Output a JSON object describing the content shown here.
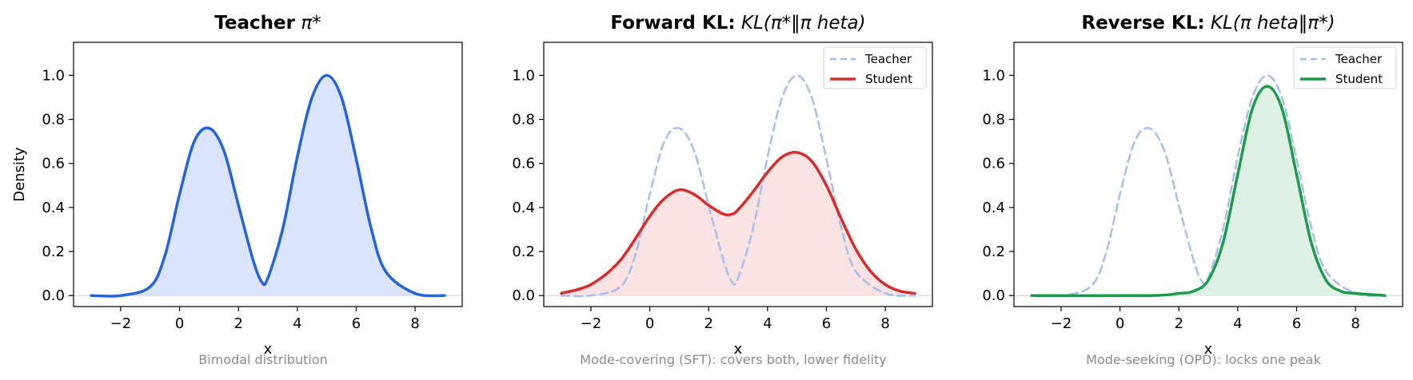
{
  "colors": {
    "teacher": "#2563d9",
    "teacher_fill": "#dbe4fb",
    "teacher_dashed": "#a5bdef",
    "student_forward": "#d62c2c",
    "student_forward_fill": "#fbe3e3",
    "student_reverse": "#1b9b4b",
    "student_reverse_fill": "#dff1e5",
    "caption": "#8c8c8c"
  },
  "chart_data": [
    {
      "type": "line",
      "title_bold": "Teacher",
      "title_math": "π*",
      "xlabel": "x",
      "ylabel": "Density",
      "caption": "Bimodal distribution",
      "xlim": [
        -3.6,
        9.6
      ],
      "ylim": [
        -0.05,
        1.15
      ],
      "xticks": [
        -2,
        0,
        2,
        4,
        6,
        8
      ],
      "xtick_labels": [
        "−2",
        "0",
        "2",
        "4",
        "6",
        "8"
      ],
      "yticks": [
        0.0,
        0.2,
        0.4,
        0.6,
        0.8,
        1.0
      ],
      "ytick_labels": [
        "0.0",
        "0.2",
        "0.4",
        "0.6",
        "0.8",
        "1.0"
      ],
      "legend": null,
      "series": [
        {
          "role": "teacher",
          "style": "solid",
          "fill": true,
          "x": [
            -3,
            -2,
            -1,
            -0.5,
            0,
            0.5,
            1,
            1.5,
            2,
            2.5,
            2.8,
            3,
            3.5,
            4,
            4.5,
            5,
            5.5,
            6,
            6.5,
            7,
            8,
            9
          ],
          "y": [
            0.0,
            0.0,
            0.04,
            0.18,
            0.46,
            0.7,
            0.76,
            0.66,
            0.41,
            0.16,
            0.06,
            0.08,
            0.3,
            0.63,
            0.9,
            1.0,
            0.9,
            0.62,
            0.31,
            0.11,
            0.01,
            0.0
          ]
        }
      ]
    },
    {
      "type": "line",
      "title_bold": "Forward KL:",
      "title_math": "KL(π*‖π heta)",
      "xlabel": "x",
      "ylabel": "",
      "caption": "Mode-covering (SFT): covers both, lower fidelity",
      "xlim": [
        -3.6,
        9.6
      ],
      "ylim": [
        -0.05,
        1.15
      ],
      "xticks": [
        -2,
        0,
        2,
        4,
        6,
        8
      ],
      "xtick_labels": [
        "−2",
        "0",
        "2",
        "4",
        "6",
        "8"
      ],
      "yticks": [
        0.0,
        0.2,
        0.4,
        0.6,
        0.8,
        1.0
      ],
      "ytick_labels": [
        "0.0",
        "0.2",
        "0.4",
        "0.6",
        "0.8",
        "1.0"
      ],
      "legend": {
        "position": "top-right",
        "entries": [
          "Teacher",
          "Student"
        ]
      },
      "series": [
        {
          "role": "teacher",
          "name": "Teacher",
          "style": "dashed",
          "fill": false,
          "x": [
            -3,
            -2,
            -1,
            -0.5,
            0,
            0.5,
            1,
            1.5,
            2,
            2.5,
            2.8,
            3,
            3.5,
            4,
            4.5,
            5,
            5.5,
            6,
            6.5,
            7,
            8,
            9
          ],
          "y": [
            0.0,
            0.0,
            0.04,
            0.18,
            0.46,
            0.7,
            0.76,
            0.66,
            0.41,
            0.16,
            0.06,
            0.08,
            0.3,
            0.63,
            0.9,
            1.0,
            0.9,
            0.62,
            0.31,
            0.11,
            0.01,
            0.0
          ]
        },
        {
          "role": "student_forward",
          "name": "Student",
          "style": "solid",
          "fill": true,
          "x": [
            -3,
            -2,
            -1,
            0,
            0.5,
            1,
            1.5,
            2,
            2.5,
            2.8,
            3,
            3.5,
            4,
            4.5,
            5,
            5.5,
            6,
            6.5,
            7,
            7.5,
            8,
            8.5,
            9
          ],
          "y": [
            0.01,
            0.05,
            0.16,
            0.36,
            0.44,
            0.48,
            0.46,
            0.41,
            0.37,
            0.37,
            0.39,
            0.47,
            0.56,
            0.63,
            0.65,
            0.61,
            0.5,
            0.35,
            0.21,
            0.11,
            0.05,
            0.02,
            0.01
          ]
        }
      ]
    },
    {
      "type": "line",
      "title_bold": "Reverse KL:",
      "title_math": "KL(π heta‖π*)",
      "xlabel": "x",
      "ylabel": "",
      "caption": "Mode-seeking (OPD): locks one peak",
      "xlim": [
        -3.6,
        9.6
      ],
      "ylim": [
        -0.05,
        1.15
      ],
      "xticks": [
        -2,
        0,
        2,
        4,
        6,
        8
      ],
      "xtick_labels": [
        "−2",
        "0",
        "2",
        "4",
        "6",
        "8"
      ],
      "yticks": [
        0.0,
        0.2,
        0.4,
        0.6,
        0.8,
        1.0
      ],
      "ytick_labels": [
        "0.0",
        "0.2",
        "0.4",
        "0.6",
        "0.8",
        "1.0"
      ],
      "legend": {
        "position": "top-right",
        "entries": [
          "Teacher",
          "Student"
        ]
      },
      "series": [
        {
          "role": "teacher",
          "name": "Teacher",
          "style": "dashed",
          "fill": false,
          "x": [
            -3,
            -2,
            -1,
            -0.5,
            0,
            0.5,
            1,
            1.5,
            2,
            2.5,
            2.8,
            3,
            3.5,
            4,
            4.5,
            5,
            5.5,
            6,
            6.5,
            7,
            8,
            9
          ],
          "y": [
            0.0,
            0.0,
            0.04,
            0.18,
            0.46,
            0.7,
            0.76,
            0.66,
            0.41,
            0.16,
            0.06,
            0.08,
            0.3,
            0.63,
            0.9,
            1.0,
            0.9,
            0.62,
            0.31,
            0.11,
            0.01,
            0.0
          ]
        },
        {
          "role": "student_reverse",
          "name": "Student",
          "style": "solid",
          "fill": true,
          "x": [
            -3,
            1,
            2,
            2.5,
            3,
            3.5,
            4,
            4.5,
            5,
            5.5,
            6,
            6.5,
            7,
            7.5,
            8,
            9
          ],
          "y": [
            0.0,
            0.0,
            0.01,
            0.02,
            0.07,
            0.24,
            0.55,
            0.85,
            0.95,
            0.85,
            0.55,
            0.24,
            0.07,
            0.02,
            0.01,
            0.0
          ]
        }
      ]
    }
  ]
}
